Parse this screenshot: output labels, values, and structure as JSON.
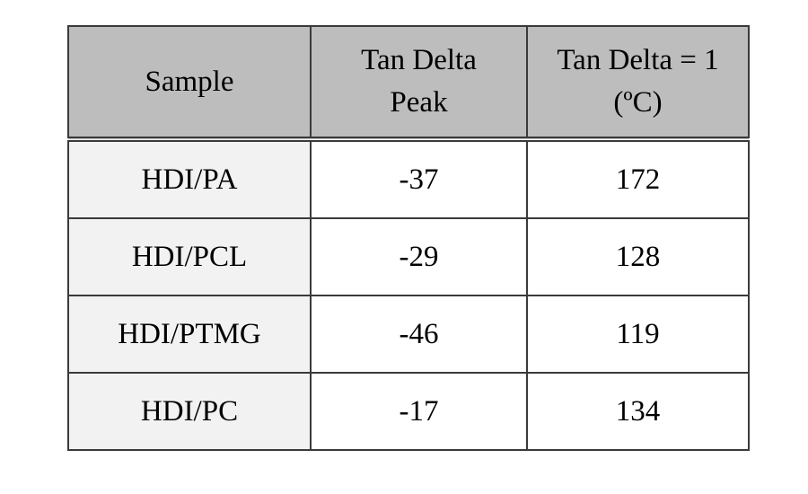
{
  "chart_data": {
    "type": "table",
    "title": "",
    "columns": [
      "Sample",
      "Tan Delta\nPeak",
      "Tan Delta = 1\n(ºC)"
    ],
    "rows": [
      [
        "HDI/PA",
        "-37",
        "172"
      ],
      [
        "HDI/PCL",
        "-29",
        "128"
      ],
      [
        "HDI/PTMG",
        "-46",
        "119"
      ],
      [
        "HDI/PC",
        "-17",
        "134"
      ]
    ],
    "layout": {
      "grid": "on",
      "header_double_rule": true
    }
  },
  "colors": {
    "header_bg": "#bdbdbd",
    "label_col_bg": "#f2f2f2",
    "cell_bg": "#ffffff",
    "border": "#3a3a3a",
    "text": "#000000"
  }
}
